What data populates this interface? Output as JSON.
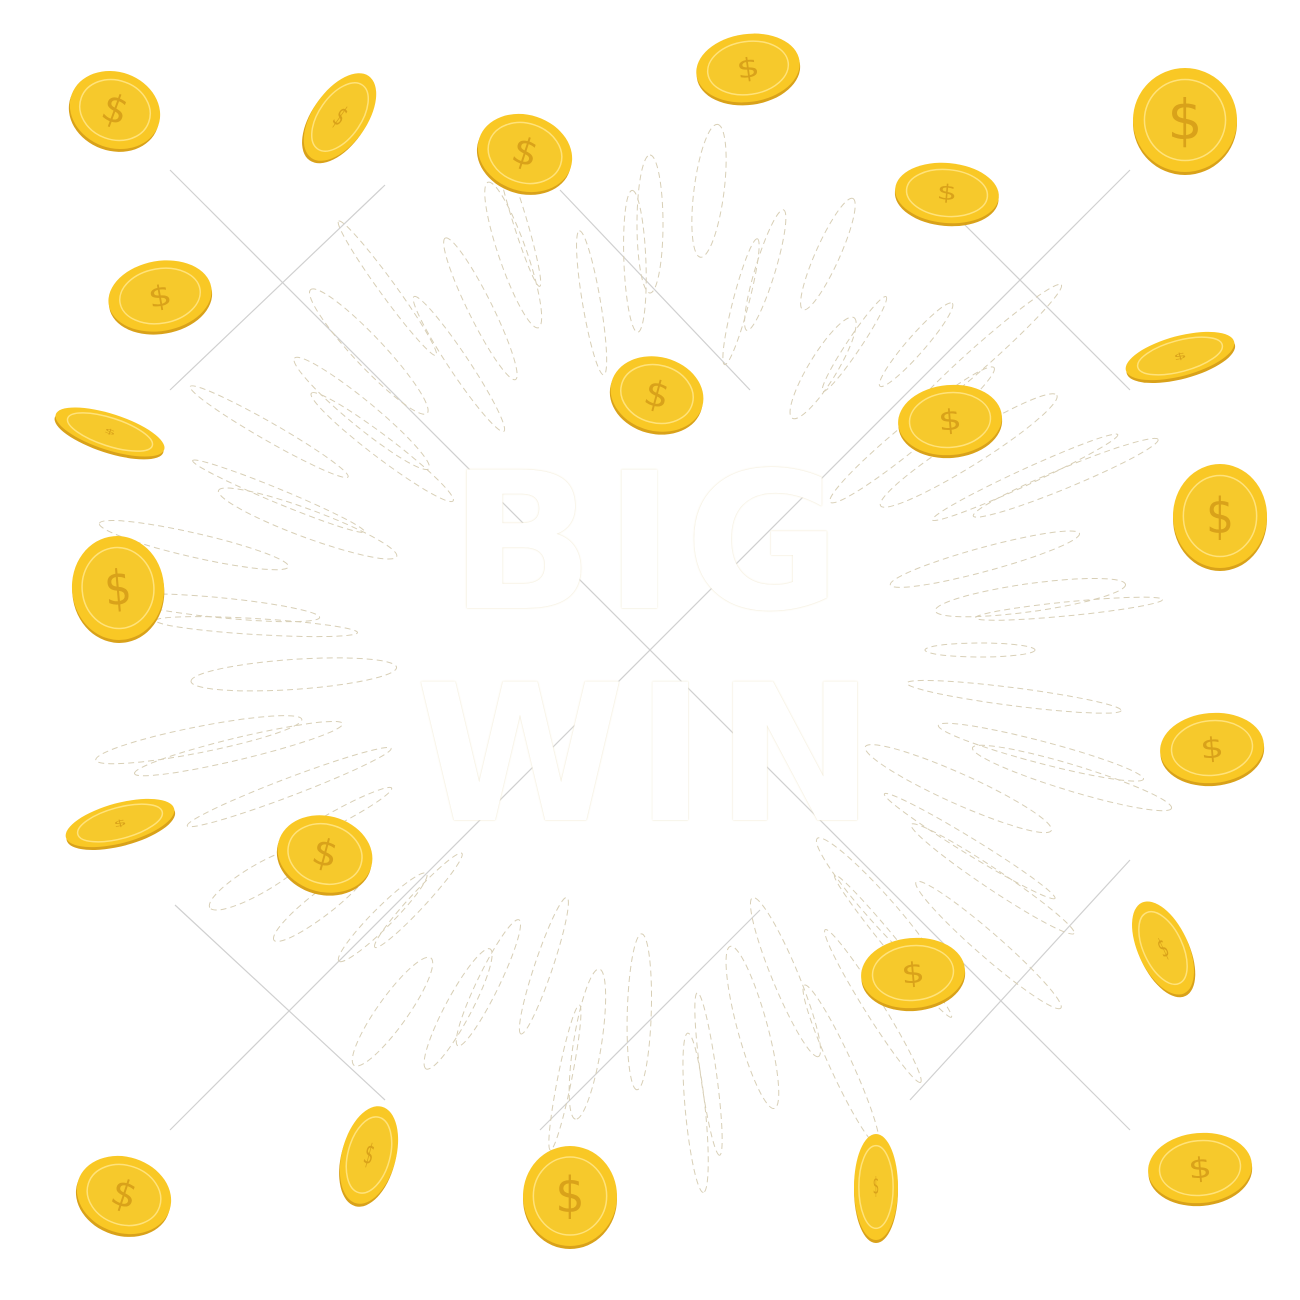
{
  "image": {
    "title_line1": "BIG",
    "title_line2": "WIN",
    "coin_symbol": "$",
    "colors": {
      "background": "#ffffff",
      "coin_face": "#f9c825",
      "coin_inner": "#f6c92c",
      "coin_edge": "#d9a21a",
      "coin_highlight": "#ffe27a",
      "symbol": "#d9a21a",
      "ray_stroke": "#d8cfb6",
      "cross_line": "#cfcfcf"
    }
  }
}
